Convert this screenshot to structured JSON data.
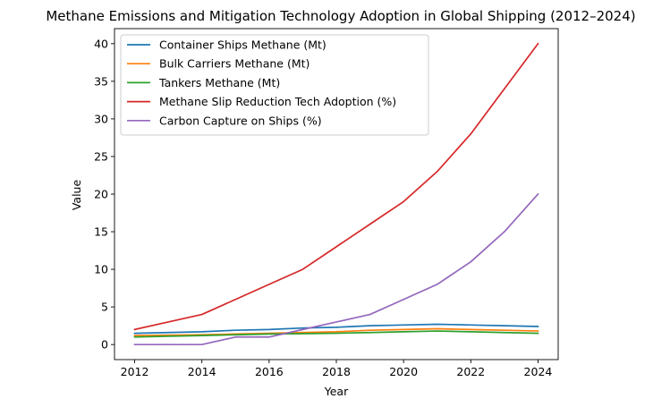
{
  "chart_data": {
    "type": "line",
    "title": "Methane Emissions and Mitigation Technology Adoption in Global Shipping (2012–2024)",
    "xlabel": "Year",
    "ylabel": "Value",
    "x": [
      2012,
      2013,
      2014,
      2015,
      2016,
      2017,
      2018,
      2019,
      2020,
      2021,
      2022,
      2023,
      2024
    ],
    "xlim": [
      2011.4,
      2024.6
    ],
    "ylim": [
      -2,
      42
    ],
    "xticks": [
      2012,
      2014,
      2016,
      2018,
      2020,
      2022,
      2024
    ],
    "yticks": [
      0,
      5,
      10,
      15,
      20,
      25,
      30,
      35,
      40
    ],
    "grid": false,
    "legend_position": "top-left",
    "series": [
      {
        "name": "Container Ships Methane (Mt)",
        "color": "#1f77b4",
        "values": [
          1.5,
          1.6,
          1.7,
          1.9,
          2.0,
          2.2,
          2.3,
          2.5,
          2.6,
          2.7,
          2.6,
          2.5,
          2.4
        ]
      },
      {
        "name": "Bulk Carriers Methane (Mt)",
        "color": "#ff7f0e",
        "values": [
          1.2,
          1.25,
          1.3,
          1.4,
          1.5,
          1.6,
          1.7,
          1.9,
          2.0,
          2.1,
          2.0,
          1.9,
          1.8
        ]
      },
      {
        "name": "Tankers Methane (Mt)",
        "color": "#2ca02c",
        "values": [
          1.0,
          1.1,
          1.2,
          1.3,
          1.4,
          1.45,
          1.5,
          1.6,
          1.7,
          1.8,
          1.7,
          1.6,
          1.5
        ]
      },
      {
        "name": "Methane Slip Reduction Tech Adoption (%)",
        "color": "#d62728",
        "values": [
          2,
          3,
          4,
          6,
          8,
          10,
          13,
          16,
          19,
          23,
          28,
          34,
          40
        ]
      },
      {
        "name": "Carbon Capture on Ships (%)",
        "color": "#9467bd",
        "values": [
          0,
          0,
          0,
          1,
          1,
          2,
          3,
          4,
          6,
          8,
          11,
          15,
          20
        ]
      }
    ]
  }
}
